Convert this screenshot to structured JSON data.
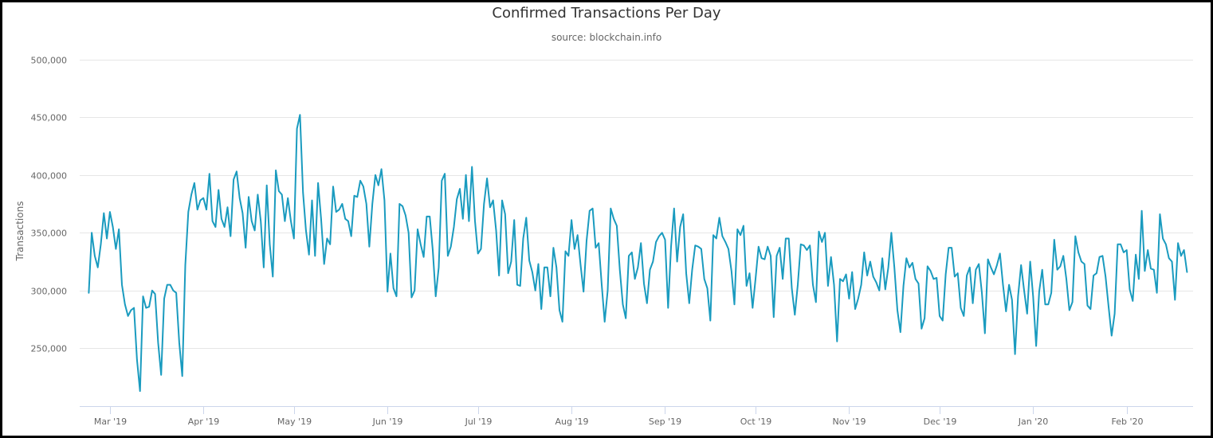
{
  "chart_data": {
    "type": "line",
    "title": "Confirmed Transactions Per Day",
    "subtitle": "source: blockchain.info",
    "ylabel": "Transactions",
    "xlabel": "",
    "ylim": [
      200000,
      510000
    ],
    "xlim": [
      "2019-02-19",
      "2020-02-23"
    ],
    "grid": "horizontal",
    "colors": {
      "line": "#1a9bbf",
      "grid": "#e6e6e6",
      "axis": "#ccd6eb"
    },
    "yticks": [
      {
        "value": 250000,
        "label": "250,000"
      },
      {
        "value": 300000,
        "label": "300,000"
      },
      {
        "value": 350000,
        "label": "350,000"
      },
      {
        "value": 400000,
        "label": "400,000"
      },
      {
        "value": 450000,
        "label": "450,000"
      },
      {
        "value": 500000,
        "label": "500,000"
      }
    ],
    "xticks": [
      {
        "date": "2019-03-01",
        "label": "Mar '19"
      },
      {
        "date": "2019-04-01",
        "label": "Apr '19"
      },
      {
        "date": "2019-05-01",
        "label": "May '19"
      },
      {
        "date": "2019-06-01",
        "label": "Jun '19"
      },
      {
        "date": "2019-07-01",
        "label": "Jul '19"
      },
      {
        "date": "2019-08-01",
        "label": "Aug '19"
      },
      {
        "date": "2019-09-01",
        "label": "Sep '19"
      },
      {
        "date": "2019-10-01",
        "label": "Oct '19"
      },
      {
        "date": "2019-11-01",
        "label": "Nov '19"
      },
      {
        "date": "2019-12-01",
        "label": "Dec '19"
      },
      {
        "date": "2020-01-01",
        "label": "Jan '20"
      },
      {
        "date": "2020-02-01",
        "label": "Feb '20"
      }
    ],
    "series": [
      {
        "start": "2019-02-22",
        "values": [
          298000,
          350000,
          330000,
          320000,
          340000,
          367000,
          345000,
          368000,
          355000,
          336000,
          353000,
          305000,
          288000,
          278000,
          283000,
          285000,
          240000,
          213000,
          295000,
          285000,
          286000,
          300000,
          297000,
          255000,
          227000,
          293000,
          305000,
          305000,
          300000,
          298000,
          255000,
          226000,
          322000,
          368000,
          383000,
          393000,
          370000,
          378000,
          380000,
          370000,
          401000,
          360000,
          355000,
          387000,
          362000,
          355000,
          372000,
          347000,
          396000,
          403000,
          380000,
          367000,
          337000,
          381000,
          360000,
          352000,
          383000,
          360000,
          320000,
          391000,
          340000,
          312000,
          404000,
          386000,
          383000,
          360000,
          380000,
          360000,
          345000,
          440000,
          452000,
          385000,
          352000,
          331000,
          378000,
          330000,
          393000,
          362000,
          323000,
          345000,
          340000,
          390000,
          368000,
          370000,
          375000,
          362000,
          360000,
          347000,
          382000,
          381000,
          395000,
          390000,
          375000,
          338000,
          375000,
          400000,
          391000,
          405000,
          378000,
          299000,
          332000,
          302000,
          295000,
          375000,
          373000,
          365000,
          350000,
          294000,
          300000,
          353000,
          340000,
          329000,
          364000,
          364000,
          335000,
          295000,
          320000,
          395000,
          401000,
          330000,
          338000,
          355000,
          379000,
          388000,
          362000,
          400000,
          360000,
          407000,
          360000,
          332000,
          336000,
          375000,
          397000,
          372000,
          378000,
          352000,
          313000,
          378000,
          366000,
          315000,
          325000,
          361000,
          305000,
          304000,
          345000,
          363000,
          326000,
          316000,
          300000,
          323000,
          284000,
          320000,
          320000,
          295000,
          337000,
          320000,
          283000,
          273000,
          334000,
          330000,
          361000,
          336000,
          348000,
          322000,
          299000,
          343000,
          369000,
          371000,
          337000,
          341000,
          305000,
          273000,
          300000,
          371000,
          362000,
          356000,
          318000,
          288000,
          276000,
          330000,
          333000,
          310000,
          320000,
          341000,
          306000,
          289000,
          318000,
          325000,
          342000,
          347000,
          350000,
          344000,
          285000,
          338000,
          371000,
          325000,
          355000,
          366000,
          315000,
          289000,
          318000,
          339000,
          338000,
          336000,
          310000,
          302000,
          274000,
          348000,
          345000,
          363000,
          347000,
          342000,
          336000,
          317000,
          288000,
          353000,
          348000,
          356000,
          304000,
          315000,
          285000,
          310000,
          338000,
          328000,
          327000,
          338000,
          330000,
          277000,
          330000,
          337000,
          310000,
          345000,
          345000,
          302000,
          279000,
          305000,
          340000,
          339000,
          335000,
          339000,
          305000,
          290000,
          351000,
          342000,
          350000,
          304000,
          329000,
          305000,
          256000,
          310000,
          308000,
          314000,
          293000,
          316000,
          284000,
          293000,
          305000,
          333000,
          313000,
          325000,
          312000,
          307000,
          300000,
          328000,
          301000,
          320000,
          350000,
          320000,
          283000,
          264000,
          304000,
          328000,
          320000,
          324000,
          310000,
          306000,
          267000,
          276000,
          321000,
          317000,
          310000,
          311000,
          278000,
          274000,
          314000,
          337000,
          337000,
          312000,
          315000,
          285000,
          278000,
          313000,
          320000,
          289000,
          318000,
          323000,
          298000,
          263000,
          327000,
          320000,
          314000,
          322000,
          332000,
          305000,
          282000,
          305000,
          292000,
          245000,
          295000,
          322000,
          300000,
          280000,
          325000,
          295000,
          252000,
          299000,
          318000,
          288000,
          288000,
          298000,
          344000,
          318000,
          321000,
          330000,
          310000,
          283000,
          290000,
          347000,
          333000,
          325000,
          323000,
          287000,
          284000,
          313000,
          315000,
          329000,
          330000,
          312000,
          286000,
          261000,
          280000,
          340000,
          340000,
          333000,
          335000,
          301000,
          291000,
          331000,
          310000,
          369000,
          317000,
          335000,
          319000,
          318000,
          298000,
          366000,
          345000,
          340000,
          328000,
          325000,
          292000,
          341000,
          330000,
          335000,
          316000
        ]
      }
    ]
  }
}
